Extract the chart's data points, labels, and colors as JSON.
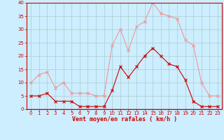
{
  "hours": [
    0,
    1,
    2,
    3,
    4,
    5,
    6,
    7,
    8,
    9,
    10,
    11,
    12,
    13,
    14,
    15,
    16,
    17,
    18,
    19,
    20,
    21,
    22,
    23
  ],
  "wind_avg": [
    5,
    5,
    6,
    3,
    3,
    3,
    1,
    1,
    1,
    1,
    7,
    16,
    12,
    16,
    20,
    23,
    20,
    17,
    16,
    11,
    3,
    1,
    1,
    1
  ],
  "wind_gust": [
    10,
    13,
    14,
    8,
    10,
    6,
    6,
    6,
    5,
    5,
    24,
    30,
    22,
    31,
    33,
    40,
    36,
    35,
    34,
    26,
    24,
    10,
    5,
    5
  ],
  "color_avg": "#cc0000",
  "color_gust": "#ee9999",
  "bg_color": "#cceeff",
  "grid_color": "#aacccc",
  "xlabel": "Vent moyen/en rafales ( km/h )",
  "ylim": [
    0,
    40
  ],
  "xlim": [
    -0.5,
    23.5
  ],
  "yticks": [
    0,
    5,
    10,
    15,
    20,
    25,
    30,
    35,
    40
  ],
  "xticks": [
    0,
    1,
    2,
    3,
    4,
    5,
    6,
    7,
    8,
    9,
    10,
    11,
    12,
    13,
    14,
    15,
    16,
    17,
    18,
    19,
    20,
    21,
    22,
    23
  ],
  "tick_fontsize": 5,
  "label_fontsize": 6
}
